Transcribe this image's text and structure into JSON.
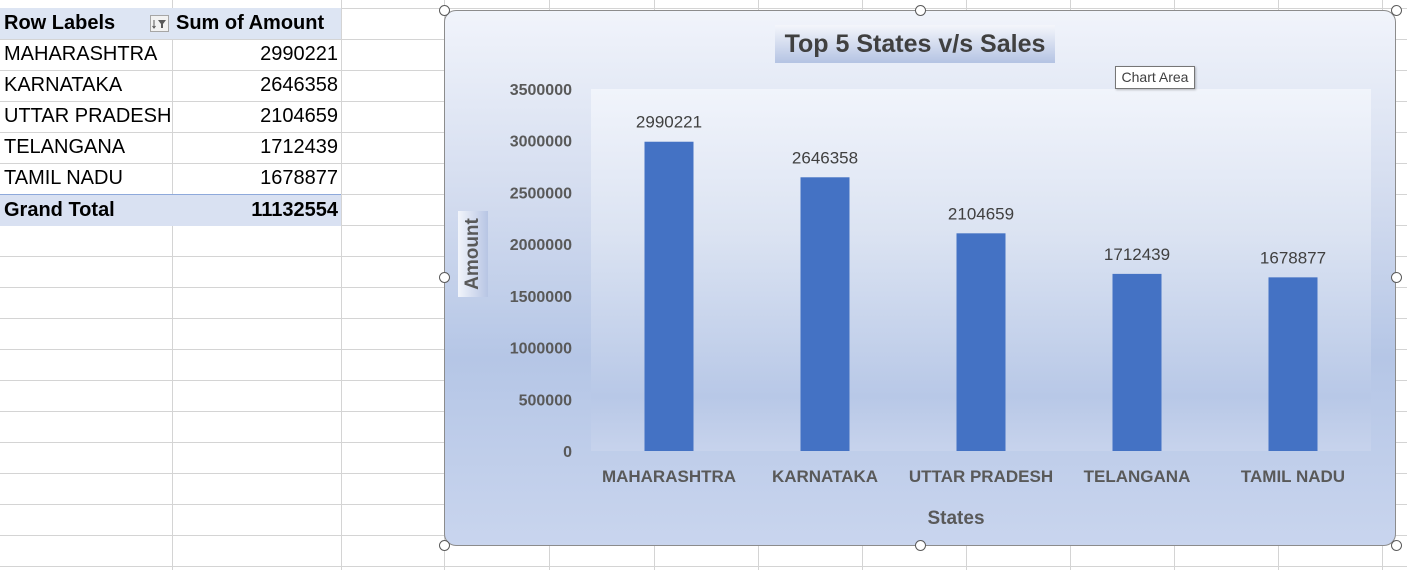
{
  "pivot": {
    "header": {
      "row_labels": "Row Labels",
      "sum_label": "Sum of Amount"
    },
    "rows": [
      {
        "label": "MAHARASHTRA",
        "value": "2990221"
      },
      {
        "label": "KARNATAKA",
        "value": "2646358"
      },
      {
        "label": "UTTAR PRADESH",
        "value": "2104659"
      },
      {
        "label": "TELANGANA",
        "value": "1712439"
      },
      {
        "label": "TAMIL NADU",
        "value": "1678877"
      }
    ],
    "total": {
      "label": "Grand Total",
      "value": "11132554"
    }
  },
  "chart_tooltip": "Chart Area",
  "colors": {
    "bar": "#4472c4",
    "text": "#404040",
    "axis_text": "#595959"
  },
  "chart_data": {
    "type": "bar",
    "title": "Top 5 States v/s Sales",
    "xlabel": "States",
    "ylabel": "Amount",
    "categories": [
      "MAHARASHTRA",
      "KARNATAKA",
      "UTTAR PRADESH",
      "TELANGANA",
      "TAMIL NADU"
    ],
    "values": [
      2990221,
      2646358,
      2104659,
      1712439,
      1678877
    ],
    "data_labels": [
      "2990221",
      "2646358",
      "2104659",
      "1712439",
      "1678877"
    ],
    "yticks": [
      0,
      500000,
      1000000,
      1500000,
      2000000,
      2500000,
      3000000,
      3500000
    ],
    "ylim": [
      0,
      3500000
    ],
    "grid": false,
    "legend": "none"
  }
}
